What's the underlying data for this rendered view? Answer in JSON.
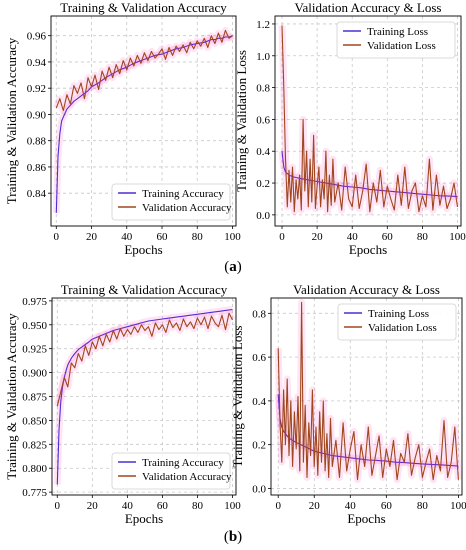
{
  "figure": {
    "captions": [
      "(a)",
      "(b)"
    ]
  },
  "colors": {
    "training": "#4b2fd6",
    "validation": "#a0461e",
    "band": "#ff2db0",
    "grid": "#c8c8c8"
  },
  "chart_data": [
    {
      "type": "line",
      "title": "Training & Validation Accuracy",
      "xlabel": "Epochs",
      "ylabel": "Training & Validation Accuracy",
      "xlim": [
        -3,
        102
      ],
      "ylim": [
        0.815,
        0.975
      ],
      "xticks": [
        "0",
        "20",
        "40",
        "60",
        "80",
        "100"
      ],
      "yticks": [
        "0.84",
        "0.86",
        "0.88",
        "0.90",
        "0.92",
        "0.94",
        "0.96"
      ],
      "grid": true,
      "legend": "bottom-right",
      "series": [
        {
          "name": "Training Accuracy",
          "x": [
            0,
            1,
            2,
            3,
            4,
            5,
            6,
            8,
            10,
            12,
            15,
            18,
            20,
            24,
            28,
            32,
            36,
            40,
            44,
            48,
            52,
            56,
            60,
            64,
            68,
            72,
            76,
            80,
            84,
            88,
            90,
            92,
            94,
            96,
            98,
            100
          ],
          "values": [
            0.825,
            0.868,
            0.885,
            0.895,
            0.898,
            0.901,
            0.904,
            0.907,
            0.91,
            0.912,
            0.915,
            0.918,
            0.921,
            0.924,
            0.928,
            0.931,
            0.934,
            0.936,
            0.939,
            0.941,
            0.943,
            0.945,
            0.946,
            0.948,
            0.95,
            0.951,
            0.953,
            0.954,
            0.955,
            0.957,
            0.957,
            0.958,
            0.958,
            0.959,
            0.959,
            0.96
          ]
        },
        {
          "name": "Validation Accuracy",
          "x": [
            0,
            2,
            4,
            6,
            8,
            10,
            12,
            14,
            16,
            18,
            20,
            22,
            24,
            26,
            28,
            30,
            32,
            34,
            36,
            38,
            40,
            42,
            44,
            46,
            48,
            50,
            52,
            54,
            56,
            58,
            60,
            62,
            64,
            66,
            68,
            70,
            72,
            74,
            76,
            78,
            80,
            82,
            84,
            86,
            88,
            90,
            92,
            94,
            96,
            98,
            100
          ],
          "values": [
            0.905,
            0.912,
            0.903,
            0.915,
            0.908,
            0.922,
            0.916,
            0.924,
            0.912,
            0.928,
            0.921,
            0.93,
            0.919,
            0.933,
            0.926,
            0.936,
            0.928,
            0.938,
            0.931,
            0.941,
            0.934,
            0.943,
            0.937,
            0.945,
            0.939,
            0.947,
            0.941,
            0.948,
            0.943,
            0.946,
            0.95,
            0.942,
            0.951,
            0.945,
            0.952,
            0.948,
            0.953,
            0.947,
            0.955,
            0.95,
            0.956,
            0.952,
            0.958,
            0.951,
            0.96,
            0.954,
            0.962,
            0.955,
            0.964,
            0.958,
            0.96
          ]
        }
      ]
    },
    {
      "type": "line",
      "title": "Validation Accuracy & Loss",
      "xlabel": "Epochs",
      "ylabel": "Training & Validation Loss",
      "xlim": [
        -4,
        102
      ],
      "ylim": [
        -0.07,
        1.25
      ],
      "xticks": [
        "0",
        "20",
        "40",
        "60",
        "80",
        "100"
      ],
      "yticks": [
        "0.0",
        "0.2",
        "0.4",
        "0.6",
        "0.8",
        "1.0",
        "1.2"
      ],
      "grid": true,
      "legend": "top-right",
      "series": [
        {
          "name": "Training Loss",
          "x": [
            0,
            1,
            2,
            3,
            4,
            5,
            6,
            8,
            10,
            15,
            20,
            25,
            30,
            35,
            40,
            45,
            50,
            55,
            60,
            65,
            70,
            75,
            80,
            85,
            90,
            95,
            100
          ],
          "values": [
            0.4,
            0.3,
            0.27,
            0.26,
            0.25,
            0.245,
            0.24,
            0.235,
            0.23,
            0.22,
            0.21,
            0.2,
            0.19,
            0.18,
            0.175,
            0.17,
            0.16,
            0.155,
            0.15,
            0.145,
            0.14,
            0.135,
            0.13,
            0.125,
            0.12,
            0.118,
            0.115
          ]
        },
        {
          "name": "Validation Loss",
          "x": [
            0,
            1,
            2,
            3,
            4,
            5,
            6,
            7,
            8,
            9,
            10,
            11,
            12,
            13,
            14,
            15,
            16,
            17,
            18,
            19,
            20,
            21,
            22,
            23,
            24,
            25,
            26,
            27,
            28,
            29,
            30,
            32,
            34,
            36,
            38,
            40,
            42,
            44,
            46,
            48,
            50,
            52,
            54,
            56,
            58,
            60,
            62,
            64,
            66,
            68,
            70,
            72,
            74,
            76,
            78,
            80,
            82,
            84,
            86,
            88,
            90,
            92,
            94,
            96,
            98,
            100
          ],
          "values": [
            1.19,
            0.8,
            0.35,
            0.05,
            0.28,
            0.08,
            0.3,
            0.02,
            0.22,
            0.1,
            0.25,
            0.03,
            0.6,
            0.15,
            0.4,
            0.05,
            0.35,
            0.08,
            0.5,
            0.04,
            0.18,
            0.3,
            0.05,
            0.22,
            0.1,
            0.4,
            0.02,
            0.25,
            0.06,
            0.35,
            0.08,
            0.2,
            0.03,
            0.3,
            0.1,
            0.05,
            0.25,
            0.04,
            0.15,
            0.32,
            0.02,
            0.2,
            0.08,
            0.28,
            0.05,
            0.18,
            0.1,
            0.03,
            0.25,
            0.06,
            0.3,
            0.04,
            0.15,
            0.2,
            0.02,
            0.12,
            0.05,
            0.35,
            0.03,
            0.25,
            0.06,
            0.18,
            0.04,
            0.1,
            0.2,
            0.05
          ]
        }
      ]
    },
    {
      "type": "line",
      "title": "Training & Validation Accuracy",
      "xlabel": "Epochs",
      "ylabel": "Training & Validation Accuracy",
      "xlim": [
        -3,
        102
      ],
      "ylim": [
        0.772,
        0.978
      ],
      "xticks": [
        "0",
        "20",
        "40",
        "60",
        "80",
        "100"
      ],
      "yticks": [
        "0.775",
        "0.800",
        "0.825",
        "0.850",
        "0.875",
        "0.900",
        "0.925",
        "0.950",
        "0.975"
      ],
      "grid": true,
      "legend": "bottom-right",
      "series": [
        {
          "name": "Training Accuracy",
          "x": [
            0,
            1,
            2,
            3,
            4,
            5,
            6,
            8,
            10,
            12,
            15,
            18,
            20,
            24,
            28,
            32,
            36,
            40,
            44,
            48,
            52,
            56,
            60,
            64,
            68,
            72,
            76,
            80,
            84,
            88,
            92,
            96,
            100
          ],
          "values": [
            0.783,
            0.84,
            0.87,
            0.885,
            0.895,
            0.902,
            0.908,
            0.915,
            0.92,
            0.924,
            0.928,
            0.932,
            0.935,
            0.938,
            0.941,
            0.944,
            0.946,
            0.948,
            0.95,
            0.952,
            0.954,
            0.955,
            0.956,
            0.957,
            0.958,
            0.959,
            0.96,
            0.961,
            0.962,
            0.963,
            0.964,
            0.965,
            0.966
          ]
        },
        {
          "name": "Validation Accuracy",
          "x": [
            0,
            2,
            4,
            6,
            8,
            10,
            12,
            14,
            16,
            18,
            20,
            22,
            24,
            26,
            28,
            30,
            32,
            34,
            36,
            38,
            40,
            42,
            44,
            46,
            48,
            50,
            52,
            54,
            56,
            58,
            60,
            62,
            64,
            66,
            68,
            70,
            72,
            74,
            76,
            78,
            80,
            82,
            84,
            86,
            88,
            90,
            92,
            94,
            96,
            98,
            100
          ],
          "values": [
            0.865,
            0.88,
            0.895,
            0.885,
            0.91,
            0.905,
            0.92,
            0.912,
            0.928,
            0.918,
            0.932,
            0.925,
            0.938,
            0.928,
            0.94,
            0.932,
            0.944,
            0.935,
            0.946,
            0.938,
            0.945,
            0.94,
            0.948,
            0.942,
            0.95,
            0.944,
            0.948,
            0.938,
            0.952,
            0.945,
            0.95,
            0.942,
            0.955,
            0.947,
            0.952,
            0.944,
            0.956,
            0.948,
            0.953,
            0.946,
            0.957,
            0.95,
            0.958,
            0.946,
            0.959,
            0.952,
            0.948,
            0.96,
            0.945,
            0.962,
            0.955
          ]
        }
      ]
    },
    {
      "type": "line",
      "title": "Validation Accuracy & Loss",
      "xlabel": "Epochs",
      "ylabel": "Training & Validation Loss",
      "xlim": [
        -4,
        102
      ],
      "ylim": [
        -0.03,
        0.87
      ],
      "xticks": [
        "0",
        "20",
        "40",
        "60",
        "80",
        "100"
      ],
      "yticks": [
        "0.0",
        "0.2",
        "0.4",
        "0.6",
        "0.8"
      ],
      "grid": true,
      "legend": "top-right",
      "series": [
        {
          "name": "Training Loss",
          "x": [
            0,
            1,
            2,
            3,
            4,
            5,
            6,
            8,
            10,
            15,
            20,
            25,
            30,
            35,
            40,
            45,
            50,
            55,
            60,
            65,
            70,
            75,
            80,
            85,
            90,
            95,
            100
          ],
          "values": [
            0.43,
            0.32,
            0.28,
            0.26,
            0.25,
            0.24,
            0.23,
            0.22,
            0.21,
            0.19,
            0.17,
            0.16,
            0.15,
            0.145,
            0.14,
            0.135,
            0.13,
            0.128,
            0.125,
            0.12,
            0.118,
            0.115,
            0.112,
            0.11,
            0.108,
            0.105,
            0.102
          ]
        },
        {
          "name": "Validation Loss",
          "x": [
            0,
            1,
            2,
            3,
            4,
            5,
            6,
            7,
            8,
            9,
            10,
            11,
            12,
            13,
            14,
            15,
            16,
            17,
            18,
            19,
            20,
            21,
            22,
            23,
            24,
            25,
            26,
            27,
            28,
            29,
            30,
            32,
            34,
            36,
            38,
            40,
            42,
            44,
            46,
            48,
            50,
            52,
            54,
            56,
            58,
            60,
            62,
            64,
            66,
            68,
            70,
            72,
            74,
            76,
            78,
            80,
            82,
            84,
            86,
            88,
            90,
            92,
            94,
            96,
            98,
            100
          ],
          "values": [
            0.64,
            0.3,
            0.12,
            0.45,
            0.2,
            0.5,
            0.15,
            0.4,
            0.1,
            0.35,
            0.18,
            0.42,
            0.08,
            0.85,
            0.12,
            0.38,
            0.05,
            0.3,
            0.15,
            0.45,
            0.1,
            0.28,
            0.06,
            0.35,
            0.12,
            0.4,
            0.08,
            0.25,
            0.05,
            0.32,
            0.1,
            0.22,
            0.05,
            0.3,
            0.08,
            0.18,
            0.26,
            0.04,
            0.2,
            0.1,
            0.28,
            0.06,
            0.15,
            0.24,
            0.05,
            0.18,
            0.1,
            0.22,
            0.04,
            0.16,
            0.12,
            0.25,
            0.06,
            0.14,
            0.2,
            0.05,
            0.12,
            0.18,
            0.04,
            0.15,
            0.08,
            0.31,
            0.05,
            0.12,
            0.28,
            0.04
          ]
        }
      ]
    }
  ]
}
